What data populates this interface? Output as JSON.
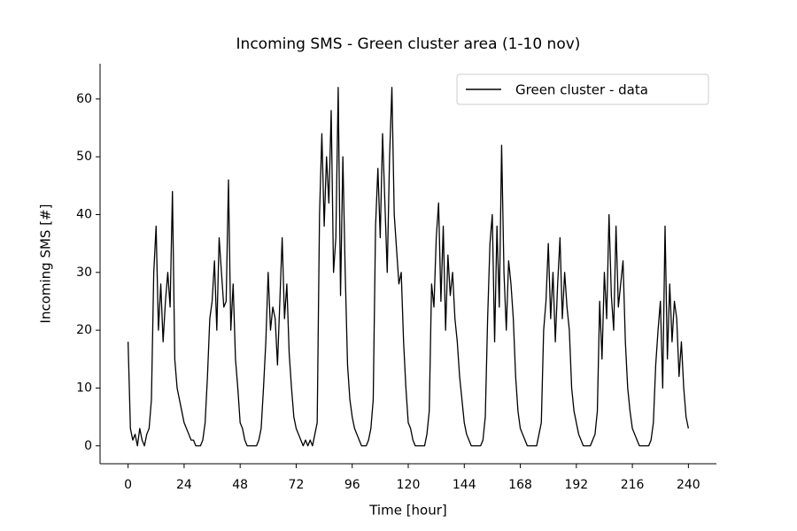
{
  "chart_data": {
    "type": "line",
    "title": "Incoming SMS - Green cluster area (1-10 nov)",
    "xlabel": "Time [hour]",
    "ylabel": "Incoming SMS [#]",
    "x": [
      0,
      1,
      2,
      3,
      4,
      5,
      6,
      7,
      8,
      9,
      10,
      11,
      12,
      13,
      14,
      15,
      16,
      17,
      18,
      19,
      20,
      21,
      22,
      23,
      24,
      25,
      26,
      27,
      28,
      29,
      30,
      31,
      32,
      33,
      34,
      35,
      36,
      37,
      38,
      39,
      40,
      41,
      42,
      43,
      44,
      45,
      46,
      47,
      48,
      49,
      50,
      51,
      52,
      53,
      54,
      55,
      56,
      57,
      58,
      59,
      60,
      61,
      62,
      63,
      64,
      65,
      66,
      67,
      68,
      69,
      70,
      71,
      72,
      73,
      74,
      75,
      76,
      77,
      78,
      79,
      80,
      81,
      82,
      83,
      84,
      85,
      86,
      87,
      88,
      89,
      90,
      91,
      92,
      93,
      94,
      95,
      96,
      97,
      98,
      99,
      100,
      101,
      102,
      103,
      104,
      105,
      106,
      107,
      108,
      109,
      110,
      111,
      112,
      113,
      114,
      115,
      116,
      117,
      118,
      119,
      120,
      121,
      122,
      123,
      124,
      125,
      126,
      127,
      128,
      129,
      130,
      131,
      132,
      133,
      134,
      135,
      136,
      137,
      138,
      139,
      140,
      141,
      142,
      143,
      144,
      145,
      146,
      147,
      148,
      149,
      150,
      151,
      152,
      153,
      154,
      155,
      156,
      157,
      158,
      159,
      160,
      161,
      162,
      163,
      164,
      165,
      166,
      167,
      168,
      169,
      170,
      171,
      172,
      173,
      174,
      175,
      176,
      177,
      178,
      179,
      180,
      181,
      182,
      183,
      184,
      185,
      186,
      187,
      188,
      189,
      190,
      191,
      192,
      193,
      194,
      195,
      196,
      197,
      198,
      199,
      200,
      201,
      202,
      203,
      204,
      205,
      206,
      207,
      208,
      209,
      210,
      211,
      212,
      213,
      214,
      215,
      216,
      217,
      218,
      219,
      220,
      221,
      222,
      223,
      224,
      225,
      226,
      227,
      228,
      229,
      230,
      231,
      232,
      233,
      234,
      235,
      236,
      237,
      238,
      239,
      240
    ],
    "series": [
      {
        "name": "Green cluster - data",
        "color": "#000000",
        "values": [
          18,
          3,
          1,
          2,
          0,
          3,
          1,
          0,
          2,
          3,
          8,
          30,
          38,
          20,
          28,
          18,
          25,
          30,
          24,
          44,
          15,
          10,
          8,
          6,
          4,
          3,
          2,
          1,
          1,
          0,
          0,
          0,
          1,
          4,
          12,
          22,
          25,
          32,
          20,
          36,
          30,
          24,
          25,
          46,
          20,
          28,
          15,
          10,
          4,
          3,
          1,
          0,
          0,
          0,
          0,
          0,
          1,
          3,
          10,
          18,
          30,
          20,
          24,
          22,
          14,
          25,
          36,
          22,
          28,
          16,
          10,
          5,
          3,
          2,
          1,
          0,
          1,
          0,
          1,
          0,
          2,
          4,
          40,
          54,
          38,
          50,
          42,
          58,
          30,
          36,
          62,
          26,
          50,
          30,
          14,
          8,
          5,
          3,
          2,
          1,
          0,
          0,
          0,
          1,
          3,
          8,
          38,
          48,
          36,
          54,
          42,
          30,
          50,
          62,
          40,
          34,
          28,
          30,
          18,
          10,
          4,
          3,
          1,
          0,
          0,
          0,
          0,
          0,
          2,
          6,
          28,
          24,
          36,
          42,
          25,
          38,
          20,
          33,
          26,
          30,
          22,
          18,
          12,
          8,
          4,
          2,
          1,
          0,
          0,
          0,
          0,
          0,
          1,
          5,
          22,
          35,
          40,
          18,
          38,
          24,
          52,
          30,
          20,
          32,
          28,
          22,
          12,
          6,
          3,
          2,
          1,
          0,
          0,
          0,
          0,
          0,
          2,
          4,
          20,
          25,
          35,
          22,
          30,
          18,
          28,
          36,
          22,
          30,
          24,
          20,
          10,
          6,
          4,
          2,
          1,
          0,
          0,
          0,
          0,
          1,
          2,
          6,
          25,
          15,
          30,
          22,
          40,
          26,
          20,
          38,
          24,
          28,
          32,
          18,
          10,
          6,
          3,
          2,
          1,
          0,
          0,
          0,
          0,
          0,
          1,
          4,
          14,
          20,
          25,
          10,
          38,
          15,
          28,
          18,
          25,
          22,
          12,
          18,
          10,
          5,
          3
        ]
      }
    ],
    "xlim": [
      -12,
      252
    ],
    "ylim": [
      -3.1,
      66.1
    ],
    "xticks": [
      0,
      24,
      48,
      72,
      96,
      120,
      144,
      168,
      192,
      216,
      240
    ],
    "yticks": [
      0,
      10,
      20,
      30,
      40,
      50,
      60
    ],
    "legend": "upper right"
  }
}
